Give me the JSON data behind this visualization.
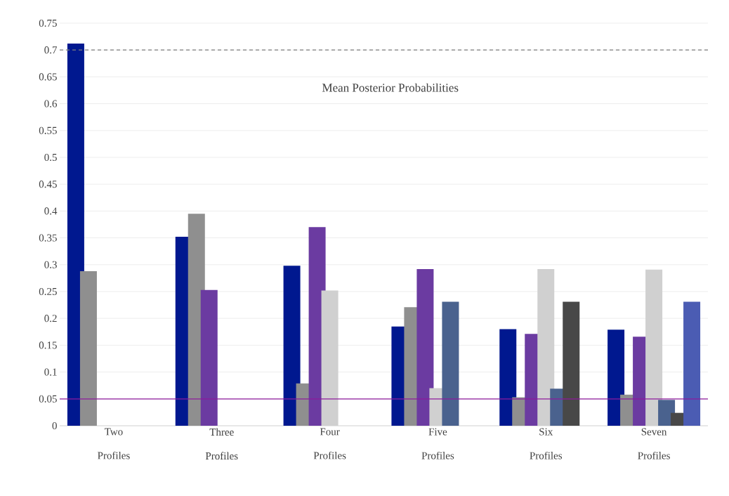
{
  "chart_data": {
    "type": "bar",
    "categories": [
      "Two Profiles",
      "Three Profiles",
      "Four Profiles",
      "Five Profiles",
      "Six Profiles",
      "Seven Profiles"
    ],
    "series": [
      {
        "color": "#00188f",
        "values": [
          0.712,
          0.352,
          0.298,
          0.185,
          0.18,
          0.179
        ]
      },
      {
        "color": "#8f8f8f",
        "values": [
          0.288,
          0.395,
          0.079,
          0.221,
          0.053,
          0.058
        ]
      },
      {
        "color": "#6b3ba1",
        "values": [
          null,
          0.253,
          0.37,
          0.292,
          0.171,
          0.166
        ]
      },
      {
        "color": "#d0d0d0",
        "values": [
          null,
          null,
          0.252,
          0.07,
          0.292,
          0.291
        ]
      },
      {
        "color": "#4a628e",
        "values": [
          null,
          null,
          null,
          0.231,
          0.069,
          0.048
        ]
      },
      {
        "color": "#484848",
        "values": [
          null,
          null,
          null,
          null,
          0.231,
          0.024
        ]
      },
      {
        "color": "#4b5cb3",
        "values": [
          null,
          null,
          null,
          null,
          null,
          0.231
        ]
      }
    ],
    "ylim": [
      0,
      0.75
    ],
    "yticks": [
      0,
      0.05,
      0.1,
      0.15,
      0.2,
      0.25,
      0.3,
      0.35,
      0.4,
      0.45,
      0.5,
      0.55,
      0.6,
      0.65,
      0.7,
      0.75
    ],
    "grid": "y",
    "ref_lines": [
      {
        "axis": "y",
        "value": 0.7,
        "color": "#7f7f7f",
        "line_style": "dashed"
      },
      {
        "axis": "y",
        "value": 0.05,
        "color": "#8e1a9c",
        "line_style": "solid"
      }
    ],
    "annotations": [
      "Mean Posterior Probabilities"
    ]
  }
}
